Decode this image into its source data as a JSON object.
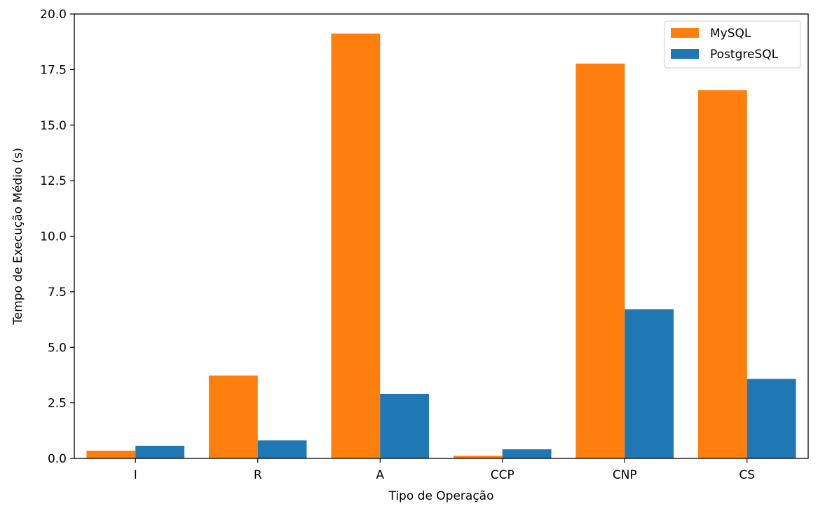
{
  "chart_data": {
    "type": "bar",
    "title": "",
    "xlabel": "Tipo de Operação",
    "ylabel": "Tempo de Execução Médio (s)",
    "categories": [
      "I",
      "R",
      "A",
      "CCP",
      "CNP",
      "CS"
    ],
    "series": [
      {
        "name": "MySQL",
        "color": "#ff7f0e",
        "values": [
          0.35,
          3.73,
          19.12,
          0.12,
          17.77,
          16.57
        ]
      },
      {
        "name": "PostgreSQL",
        "color": "#1f77b4",
        "values": [
          0.57,
          0.81,
          2.9,
          0.41,
          6.71,
          3.58
        ]
      }
    ],
    "ylim": [
      0,
      20
    ],
    "yticks": [
      "0.0",
      "2.5",
      "5.0",
      "7.5",
      "10.0",
      "12.5",
      "15.0",
      "17.5",
      "20.0"
    ],
    "ytick_values": [
      0,
      2.5,
      5,
      7.5,
      10,
      12.5,
      15,
      17.5,
      20
    ],
    "grid": false,
    "legend_position": "top-right"
  }
}
